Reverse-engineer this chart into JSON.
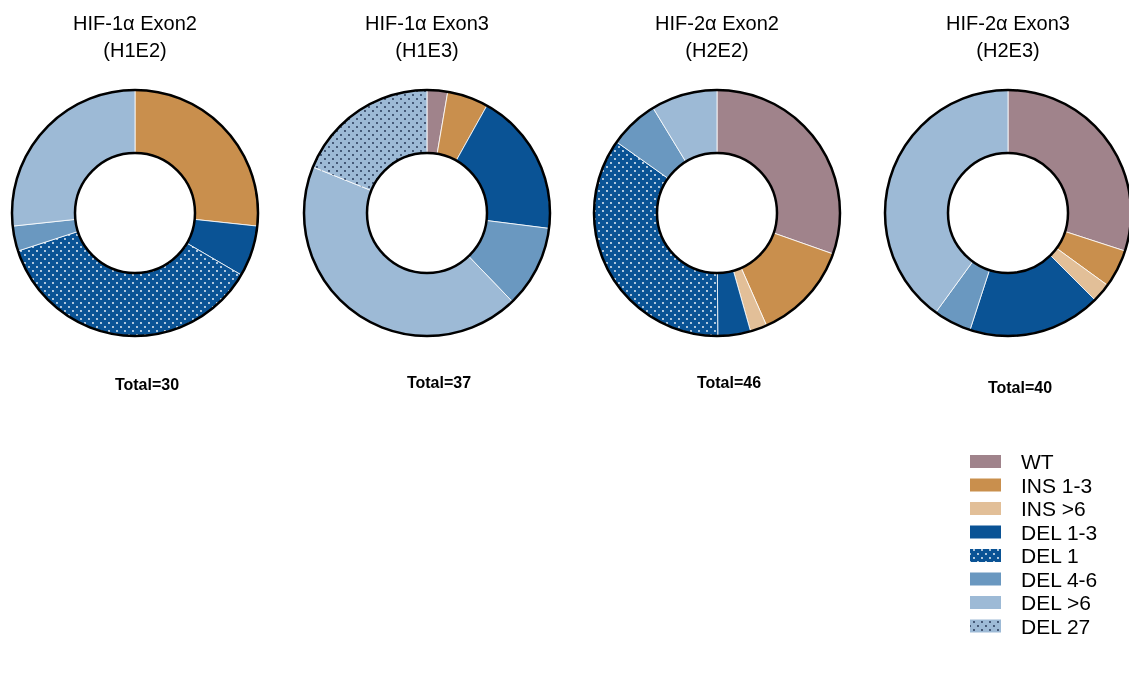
{
  "chart_data": [
    {
      "type": "donut",
      "title": "HIF-1α Exon2\n(H1E2)",
      "categories": [
        null,
        null,
        null,
        null,
        null
      ],
      "values": [
        26.7,
        6.7,
        36.6,
        3.3,
        26.7
      ],
      "colors": [
        "#c98f4d",
        "#0a5395",
        "#0a5395",
        "#6a98c0",
        "#9dbad6"
      ],
      "annotations": [
        "Total=30"
      ]
    },
    {
      "type": "donut",
      "title": "HIF-1α Exon3\n(H1E3)",
      "categories": [
        null,
        null,
        null,
        null,
        null,
        null
      ],
      "values": [
        2.7,
        5.4,
        18.9,
        10.8,
        43.3,
        18.9
      ],
      "colors": [
        "#a0838b",
        "#c98f4d",
        "#0a5395",
        "#6a98c0",
        "#9dbad6",
        "#9dbad6"
      ],
      "annotations": [
        "Total=37"
      ]
    },
    {
      "type": "donut",
      "title": "HIF-2α Exon2\n(H2E2)",
      "categories": [
        null,
        null,
        null,
        null,
        null,
        null,
        null
      ],
      "values": [
        30.4,
        13.0,
        2.2,
        4.3,
        34.9,
        6.5,
        8.7
      ],
      "colors": [
        "#a0838b",
        "#c98f4d",
        "#e2bf98",
        "#0a5395",
        "#0a5395",
        "#6a98c0",
        "#9dbad6"
      ],
      "annotations": [
        "Total=46"
      ]
    },
    {
      "type": "donut",
      "title": "HIF-2α Exon3\n(H2E3)",
      "categories": [
        "WT",
        "INS 1-3",
        "INS >6",
        "DEL 1-3",
        "DEL 1",
        "DEL 4-6",
        "DEL >6",
        "DEL 27"
      ],
      "values": [
        30,
        5,
        2.5,
        17.5,
        0,
        5,
        40,
        0
      ],
      "colors": [
        "#a0838b",
        "#c98f4d",
        "#e2bf98",
        "#0a5395",
        "#0a5395",
        "#6a98c0",
        "#9dbad6",
        "#9dbad6"
      ],
      "annotations": [
        "Total=40"
      ],
      "legend": "bottom right"
    }
  ]
}
